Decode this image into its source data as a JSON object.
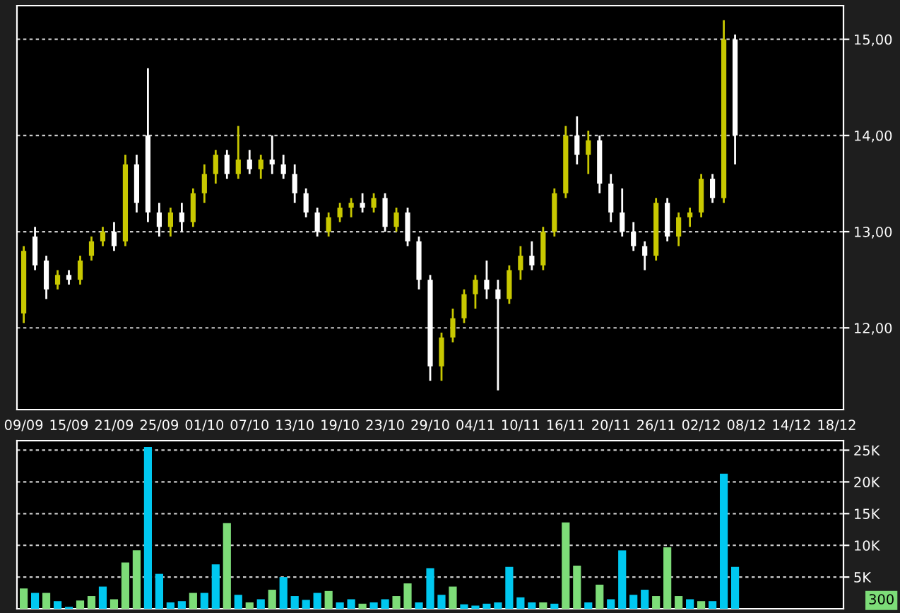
{
  "chart_data": [
    {
      "type": "candlestick",
      "categories": [
        "09/09",
        null,
        null,
        null,
        "15/09",
        null,
        null,
        null,
        "21/09",
        null,
        null,
        null,
        "25/09",
        null,
        null,
        null,
        "01/10",
        null,
        null,
        null,
        "07/10",
        null,
        null,
        null,
        "13/10",
        null,
        null,
        null,
        "19/10",
        null,
        null,
        null,
        "23/10",
        null,
        null,
        null,
        "29/10",
        null,
        null,
        null,
        "04/11",
        null,
        null,
        null,
        "10/11",
        null,
        null,
        null,
        "16/11",
        null,
        null,
        null,
        "20/11",
        null,
        null,
        null,
        "26/11",
        null,
        null,
        null,
        "02/12",
        null,
        null,
        null,
        "08/12",
        null,
        null,
        null,
        "14/12",
        null,
        null,
        null,
        "18/12"
      ],
      "ohlc": [
        [
          12.15,
          12.85,
          12.05,
          12.8
        ],
        [
          12.95,
          13.05,
          12.6,
          12.65
        ],
        [
          12.7,
          12.75,
          12.3,
          12.4
        ],
        [
          12.45,
          12.6,
          12.4,
          12.55
        ],
        [
          12.55,
          12.6,
          12.45,
          12.5
        ],
        [
          12.5,
          12.75,
          12.45,
          12.7
        ],
        [
          12.75,
          12.95,
          12.7,
          12.9
        ],
        [
          12.9,
          13.05,
          12.85,
          13.0
        ],
        [
          13.0,
          13.1,
          12.8,
          12.85
        ],
        [
          12.9,
          13.8,
          12.85,
          13.7
        ],
        [
          13.7,
          13.8,
          13.2,
          13.3
        ],
        [
          14.0,
          14.7,
          13.1,
          13.2
        ],
        [
          13.2,
          13.3,
          12.95,
          13.05
        ],
        [
          13.05,
          13.25,
          12.95,
          13.2
        ],
        [
          13.2,
          13.3,
          13.0,
          13.1
        ],
        [
          13.1,
          13.45,
          13.05,
          13.4
        ],
        [
          13.4,
          13.7,
          13.3,
          13.6
        ],
        [
          13.6,
          13.85,
          13.5,
          13.8
        ],
        [
          13.8,
          13.85,
          13.55,
          13.6
        ],
        [
          13.6,
          14.1,
          13.55,
          13.75
        ],
        [
          13.75,
          13.85,
          13.6,
          13.65
        ],
        [
          13.65,
          13.8,
          13.55,
          13.75
        ],
        [
          13.75,
          14.0,
          13.6,
          13.7
        ],
        [
          13.7,
          13.8,
          13.55,
          13.6
        ],
        [
          13.6,
          13.7,
          13.3,
          13.4
        ],
        [
          13.4,
          13.45,
          13.15,
          13.2
        ],
        [
          13.2,
          13.25,
          12.95,
          13.0
        ],
        [
          13.0,
          13.2,
          12.95,
          13.15
        ],
        [
          13.15,
          13.3,
          13.1,
          13.25
        ],
        [
          13.25,
          13.35,
          13.15,
          13.3
        ],
        [
          13.3,
          13.4,
          13.2,
          13.25
        ],
        [
          13.25,
          13.4,
          13.2,
          13.35
        ],
        [
          13.35,
          13.4,
          13.0,
          13.05
        ],
        [
          13.05,
          13.25,
          13.0,
          13.2
        ],
        [
          13.2,
          13.25,
          12.85,
          12.9
        ],
        [
          12.9,
          12.95,
          12.4,
          12.5
        ],
        [
          12.5,
          12.55,
          11.45,
          11.6
        ],
        [
          11.6,
          11.95,
          11.45,
          11.9
        ],
        [
          11.9,
          12.2,
          11.85,
          12.1
        ],
        [
          12.1,
          12.4,
          12.05,
          12.35
        ],
        [
          12.35,
          12.55,
          12.2,
          12.5
        ],
        [
          12.5,
          12.7,
          12.3,
          12.4
        ],
        [
          12.4,
          12.5,
          11.35,
          12.3
        ],
        [
          12.3,
          12.65,
          12.25,
          12.6
        ],
        [
          12.6,
          12.85,
          12.5,
          12.75
        ],
        [
          12.75,
          12.9,
          12.6,
          12.65
        ],
        [
          12.65,
          13.05,
          12.6,
          13.0
        ],
        [
          13.0,
          13.45,
          12.95,
          13.4
        ],
        [
          13.4,
          14.1,
          13.35,
          14.0
        ],
        [
          14.0,
          14.2,
          13.7,
          13.8
        ],
        [
          13.8,
          14.05,
          13.6,
          13.95
        ],
        [
          13.95,
          14.0,
          13.4,
          13.5
        ],
        [
          13.5,
          13.6,
          13.1,
          13.2
        ],
        [
          13.2,
          13.45,
          12.95,
          13.0
        ],
        [
          13.0,
          13.1,
          12.8,
          12.85
        ],
        [
          12.85,
          12.9,
          12.6,
          12.75
        ],
        [
          12.75,
          13.35,
          12.7,
          13.3
        ],
        [
          13.3,
          13.35,
          12.9,
          12.95
        ],
        [
          12.95,
          13.2,
          12.85,
          13.15
        ],
        [
          13.15,
          13.25,
          13.05,
          13.2
        ],
        [
          13.2,
          13.6,
          13.15,
          13.55
        ],
        [
          13.55,
          13.6,
          13.3,
          13.35
        ],
        [
          13.35,
          15.2,
          13.3,
          15.0
        ],
        [
          15.0,
          15.05,
          13.7,
          14.0
        ],
        null,
        null,
        null,
        null,
        null,
        null,
        null,
        null,
        null
      ],
      "colors": [
        "#c8c800",
        "#ffffff",
        "#ffffff",
        "#c8c800",
        "#ffffff",
        "#c8c800",
        "#c8c800",
        "#c8c800",
        "#ffffff",
        "#c8c800",
        "#ffffff",
        "#ffffff",
        "#ffffff",
        "#c8c800",
        "#ffffff",
        "#c8c800",
        "#c8c800",
        "#c8c800",
        "#ffffff",
        "#c8c800",
        "#ffffff",
        "#c8c800",
        "#ffffff",
        "#ffffff",
        "#ffffff",
        "#ffffff",
        "#ffffff",
        "#c8c800",
        "#c8c800",
        "#c8c800",
        "#ffffff",
        "#c8c800",
        "#ffffff",
        "#c8c800",
        "#ffffff",
        "#ffffff",
        "#ffffff",
        "#c8c800",
        "#c8c800",
        "#c8c800",
        "#c8c800",
        "#ffffff",
        "#ffffff",
        "#c8c800",
        "#c8c800",
        "#ffffff",
        "#c8c800",
        "#c8c800",
        "#c8c800",
        "#ffffff",
        "#c8c800",
        "#ffffff",
        "#ffffff",
        "#ffffff",
        "#ffffff",
        "#ffffff",
        "#c8c800",
        "#ffffff",
        "#c8c800",
        "#c8c800",
        "#c8c800",
        "#ffffff",
        "#c8c800",
        "#ffffff",
        null,
        null,
        null,
        null,
        null,
        null,
        null,
        null,
        null
      ],
      "ylim": [
        11.15,
        15.35
      ],
      "yticks": [
        {
          "value": 12,
          "label": "12,00"
        },
        {
          "value": 13,
          "label": "13,00"
        },
        {
          "value": 14,
          "label": "14,00"
        },
        {
          "value": 15,
          "label": "15,00"
        }
      ],
      "grid": "y"
    },
    {
      "type": "bar",
      "categories": [
        null,
        null,
        null,
        null,
        null,
        null,
        null,
        null,
        null,
        null,
        null,
        null,
        null,
        null,
        null,
        null,
        null,
        null,
        null,
        null,
        null,
        null,
        null,
        null,
        null,
        null,
        null,
        null,
        null,
        null,
        null,
        null,
        null,
        null,
        null,
        null,
        null,
        null,
        null,
        null,
        null,
        null,
        null,
        null,
        null,
        null,
        null,
        null,
        null,
        null,
        null,
        null,
        null,
        null,
        null,
        null,
        null,
        null,
        null,
        null,
        null,
        null,
        null,
        null,
        null,
        null,
        null,
        null,
        null,
        null,
        null,
        null,
        null
      ],
      "values": [
        3200,
        2500,
        2500,
        1200,
        300,
        1300,
        2000,
        3500,
        1500,
        7300,
        9200,
        25500,
        5500,
        1000,
        1200,
        2500,
        2500,
        7000,
        13500,
        2200,
        1000,
        1500,
        3000,
        5000,
        2000,
        1400,
        2500,
        2800,
        1000,
        1500,
        800,
        1000,
        1500,
        2000,
        4000,
        1000,
        6400,
        2200,
        3500,
        700,
        500,
        800,
        1000,
        6600,
        1800,
        1000,
        1000,
        800,
        13600,
        6800,
        1000,
        3800,
        1500,
        9200,
        2200,
        3000,
        2000,
        9700,
        2000,
        1500,
        1200,
        1200,
        21300,
        6600,
        null,
        null,
        null,
        null,
        null,
        null,
        null,
        null,
        null
      ],
      "colors": [
        "#7ddc78",
        "#00c8f0",
        "#7ddc78",
        "#00c8f0",
        "#00c8f0",
        "#7ddc78",
        "#7ddc78",
        "#00c8f0",
        "#7ddc78",
        "#7ddc78",
        "#7ddc78",
        "#00c8f0",
        "#00c8f0",
        "#00c8f0",
        "#00c8f0",
        "#7ddc78",
        "#00c8f0",
        "#00c8f0",
        "#7ddc78",
        "#00c8f0",
        "#7ddc78",
        "#00c8f0",
        "#7ddc78",
        "#00c8f0",
        "#00c8f0",
        "#00c8f0",
        "#00c8f0",
        "#7ddc78",
        "#00c8f0",
        "#00c8f0",
        "#7ddc78",
        "#00c8f0",
        "#00c8f0",
        "#7ddc78",
        "#7ddc78",
        "#00c8f0",
        "#00c8f0",
        "#00c8f0",
        "#7ddc78",
        "#00c8f0",
        "#00c8f0",
        "#00c8f0",
        "#00c8f0",
        "#00c8f0",
        "#00c8f0",
        "#00c8f0",
        "#7ddc78",
        "#00c8f0",
        "#7ddc78",
        "#7ddc78",
        "#00c8f0",
        "#7ddc78",
        "#00c8f0",
        "#00c8f0",
        "#00c8f0",
        "#00c8f0",
        "#7ddc78",
        "#7ddc78",
        "#7ddc78",
        "#00c8f0",
        "#7ddc78",
        "#00c8f0",
        "#00c8f0",
        "#00c8f0",
        null,
        null,
        null,
        null,
        null,
        null,
        null,
        null,
        null
      ],
      "ylim": [
        0,
        26500
      ],
      "yticks": [
        {
          "value": 5000,
          "label": "5K"
        },
        {
          "value": 10000,
          "label": "10K"
        },
        {
          "value": 15000,
          "label": "15K"
        },
        {
          "value": 20000,
          "label": "20K"
        },
        {
          "value": 25000,
          "label": "25K"
        }
      ],
      "tick_labels": "y",
      "grid": "y",
      "annotations": [
        "300"
      ]
    }
  ]
}
